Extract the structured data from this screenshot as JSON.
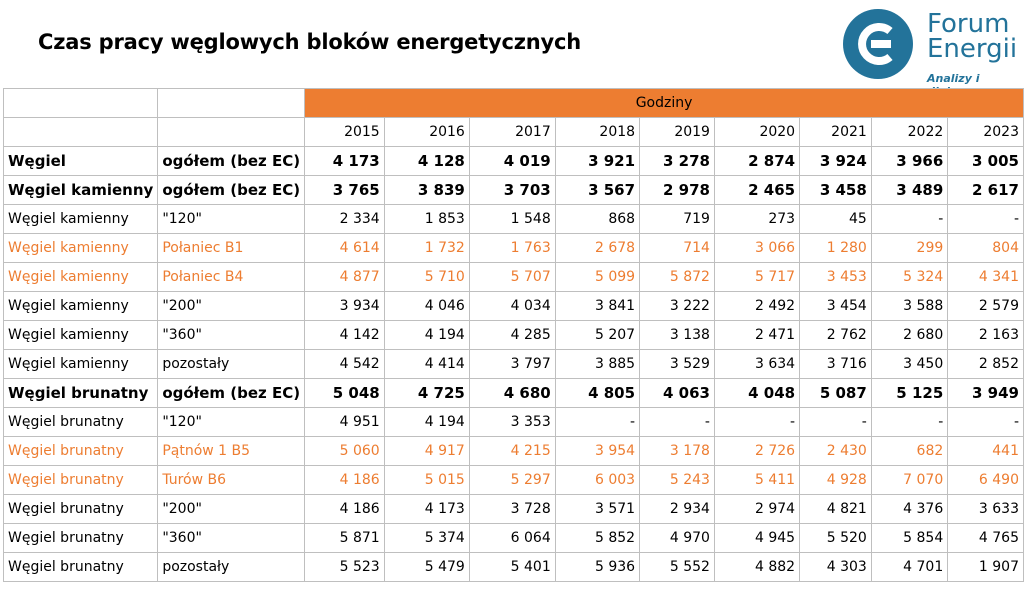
{
  "title": "Czas pracy węglowych bloków energetycznych",
  "logo": {
    "name_line1": "Forum",
    "name_line2": "Energii",
    "tagline": "Analizy i dialog",
    "color": "#23739a"
  },
  "accent_color": "#ed7d31",
  "chart_data": {
    "type": "table",
    "title": "Czas pracy węglowych bloków energetycznych",
    "group_header": "Godziny",
    "columns": [
      "2015",
      "2016",
      "2017",
      "2018",
      "2019",
      "2020",
      "2021",
      "2022",
      "2023"
    ],
    "rows": [
      {
        "fuel": "Węgiel",
        "unit": "ogółem (bez EC)",
        "style": "bold",
        "values": [
          "4 173",
          "4 128",
          "4 019",
          "3 921",
          "3 278",
          "2 874",
          "3 924",
          "3 966",
          "3 005"
        ]
      },
      {
        "fuel": "Węgiel kamienny",
        "unit": "ogółem (bez EC)",
        "style": "bold",
        "values": [
          "3 765",
          "3 839",
          "3 703",
          "3 567",
          "2 978",
          "2 465",
          "3 458",
          "3 489",
          "2 617"
        ]
      },
      {
        "fuel": "Węgiel kamienny",
        "unit": "\"120\"",
        "style": "normal",
        "values": [
          "2 334",
          "1 853",
          "1 548",
          "868",
          "719",
          "273",
          "45",
          "-",
          "-"
        ]
      },
      {
        "fuel": "Węgiel kamienny",
        "unit": "Połaniec B1",
        "style": "orange",
        "values": [
          "4 614",
          "1 732",
          "1 763",
          "2 678",
          "714",
          "3 066",
          "1 280",
          "299",
          "804"
        ]
      },
      {
        "fuel": "Węgiel kamienny",
        "unit": "Połaniec B4",
        "style": "orange",
        "values": [
          "4 877",
          "5 710",
          "5 707",
          "5 099",
          "5 872",
          "5 717",
          "3 453",
          "5 324",
          "4 341"
        ]
      },
      {
        "fuel": "Węgiel kamienny",
        "unit": "\"200\"",
        "style": "normal",
        "values": [
          "3 934",
          "4 046",
          "4 034",
          "3 841",
          "3 222",
          "2 492",
          "3 454",
          "3 588",
          "2 579"
        ]
      },
      {
        "fuel": "Węgiel kamienny",
        "unit": "\"360\"",
        "style": "normal",
        "values": [
          "4 142",
          "4 194",
          "4 285",
          "5 207",
          "3 138",
          "2 471",
          "2 762",
          "2 680",
          "2 163"
        ]
      },
      {
        "fuel": "Węgiel kamienny",
        "unit": "pozostały",
        "style": "normal",
        "values": [
          "4 542",
          "4 414",
          "3 797",
          "3 885",
          "3 529",
          "3 634",
          "3 716",
          "3 450",
          "2 852"
        ]
      },
      {
        "fuel": "Węgiel brunatny",
        "unit": "ogółem (bez EC)",
        "style": "bold",
        "values": [
          "5 048",
          "4 725",
          "4 680",
          "4 805",
          "4 063",
          "4 048",
          "5 087",
          "5 125",
          "3 949"
        ]
      },
      {
        "fuel": "Węgiel brunatny",
        "unit": "\"120\"",
        "style": "normal",
        "values": [
          "4 951",
          "4 194",
          "3 353",
          "-",
          "-",
          "-",
          "-",
          "-",
          "-"
        ]
      },
      {
        "fuel": "Węgiel brunatny",
        "unit": "Pątnów 1 B5",
        "style": "orange",
        "values": [
          "5 060",
          "4 917",
          "4 215",
          "3 954",
          "3 178",
          "2 726",
          "2 430",
          "682",
          "441"
        ]
      },
      {
        "fuel": "Węgiel brunatny",
        "unit": "Turów B6",
        "style": "orange",
        "values": [
          "4 186",
          "5 015",
          "5 297",
          "6 003",
          "5 243",
          "5 411",
          "4 928",
          "7 070",
          "6 490"
        ]
      },
      {
        "fuel": "Węgiel brunatny",
        "unit": "\"200\"",
        "style": "normal",
        "values": [
          "4 186",
          "4 173",
          "3 728",
          "3 571",
          "2 934",
          "2 974",
          "4 821",
          "4 376",
          "3 633"
        ]
      },
      {
        "fuel": "Węgiel brunatny",
        "unit": "\"360\"",
        "style": "normal",
        "values": [
          "5 871",
          "5 374",
          "6 064",
          "5 852",
          "4 970",
          "4 945",
          "5 520",
          "5 854",
          "4 765"
        ]
      },
      {
        "fuel": "Węgiel brunatny",
        "unit": "pozostały",
        "style": "normal",
        "values": [
          "5 523",
          "5 479",
          "5 401",
          "5 936",
          "5 552",
          "4 882",
          "4 303",
          "4 701",
          "1 907"
        ]
      }
    ]
  }
}
